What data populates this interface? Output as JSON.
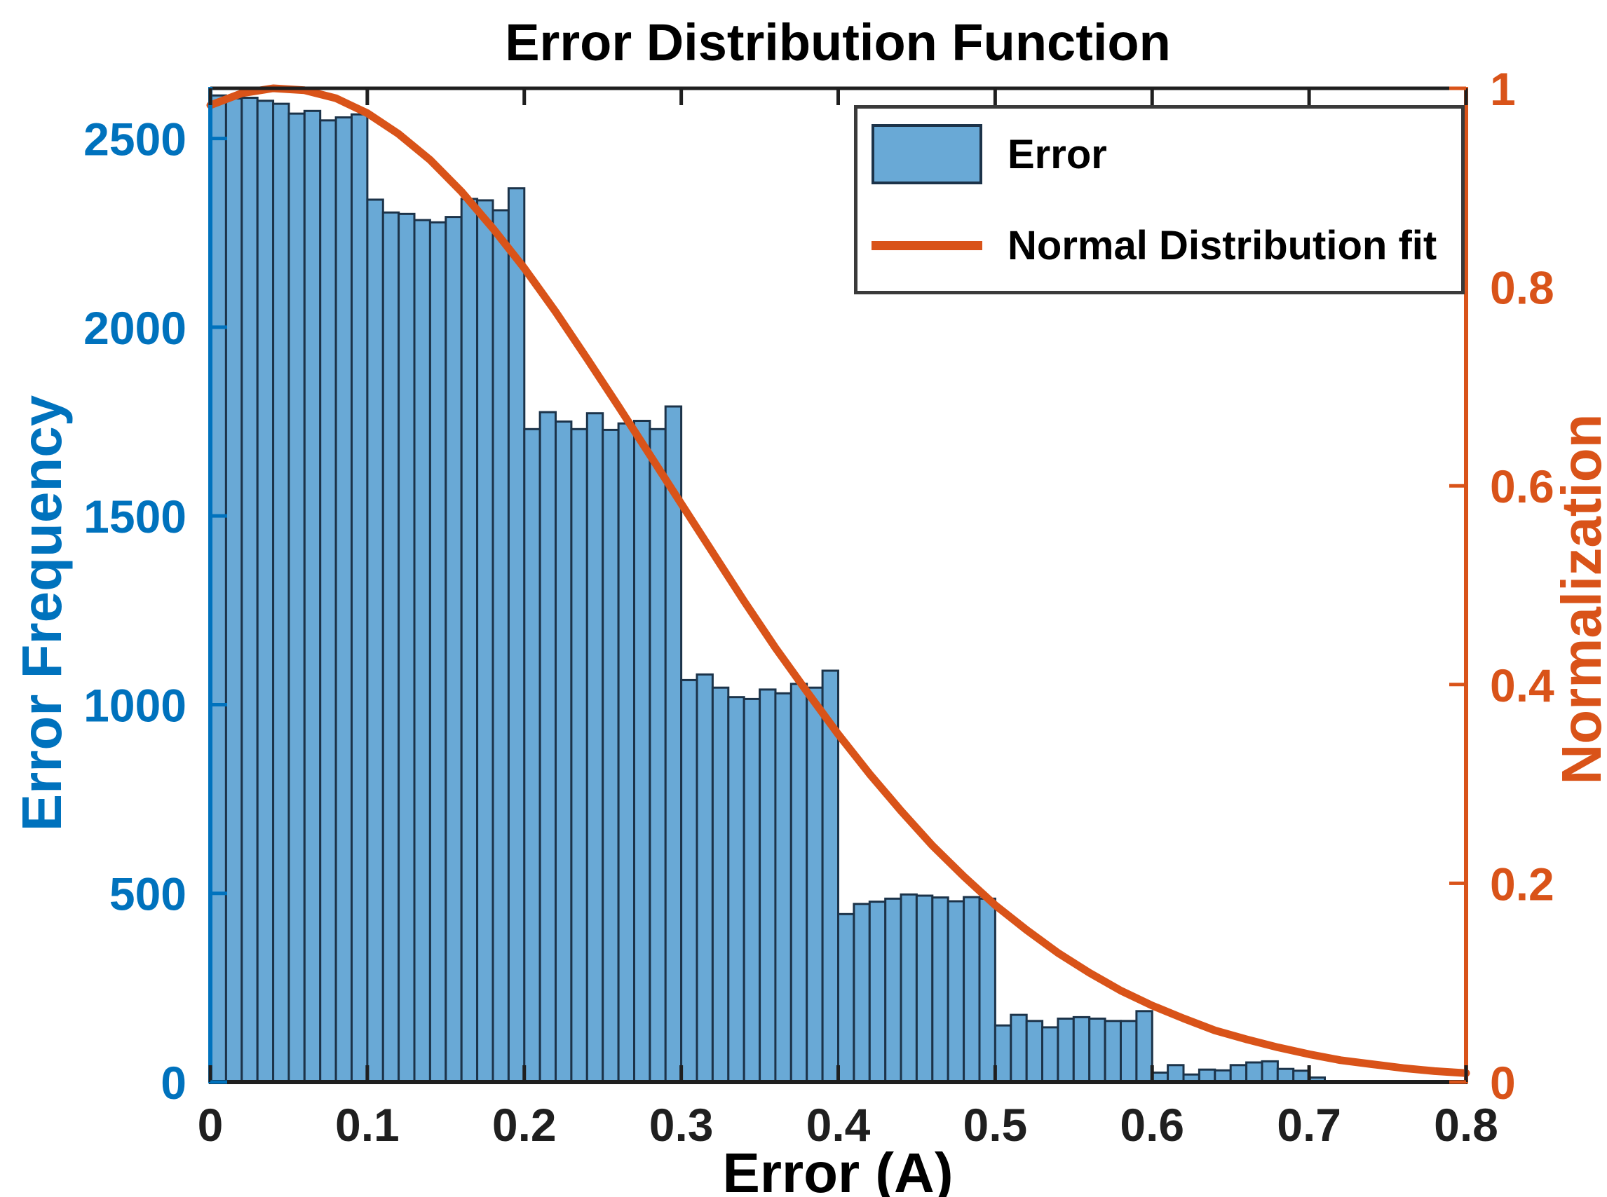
{
  "chart_data": {
    "type": "bar",
    "title": "Error Distribution Function",
    "xlabel": "Error (A)",
    "ylabel_left": "Error Frequency",
    "ylabel_right": "Normalization",
    "xlim": [
      0,
      0.8
    ],
    "ylim_left": [
      0,
      2633
    ],
    "ylim_right": [
      0,
      1
    ],
    "grid": false,
    "legend_position": "top-right",
    "x_ticks": [
      0,
      0.1,
      0.2,
      0.3,
      0.4,
      0.5,
      0.6,
      0.7,
      0.8
    ],
    "x_tick_labels": [
      "0",
      "0.1",
      "0.2",
      "0.3",
      "0.4",
      "0.5",
      "0.6",
      "0.7",
      "0.8"
    ],
    "y_left_ticks": [
      0,
      500,
      1000,
      1500,
      2000,
      2500
    ],
    "y_left_tick_labels": [
      "0",
      "500",
      "1000",
      "1500",
      "2000",
      "2500"
    ],
    "y_right_ticks": [
      0,
      0.2,
      0.4,
      0.6,
      0.8,
      1
    ],
    "y_right_tick_labels": [
      "0",
      "0.2",
      "0.4",
      "0.6",
      "0.8",
      "1"
    ],
    "bars": {
      "series_name": "Error",
      "bin_start": 0,
      "bin_width": 0.01,
      "values": [
        2614,
        2606,
        2608,
        2600,
        2592,
        2566,
        2573,
        2548,
        2556,
        2564,
        2338,
        2304,
        2300,
        2284,
        2278,
        2292,
        2340,
        2336,
        2310,
        2368,
        1730,
        1775,
        1750,
        1730,
        1772,
        1728,
        1745,
        1752,
        1730,
        1790,
        1065,
        1080,
        1045,
        1020,
        1015,
        1040,
        1030,
        1055,
        1045,
        1090,
        445,
        472,
        478,
        486,
        497,
        494,
        489,
        479,
        490,
        486,
        150,
        178,
        162,
        145,
        168,
        172,
        168,
        162,
        162,
        188,
        25,
        45,
        20,
        33,
        31,
        45,
        52,
        55,
        35,
        30,
        12
      ]
    },
    "fit_curve": {
      "series_name": "Normal Distribution fit",
      "x": [
        0,
        0.02,
        0.04,
        0.06,
        0.08,
        0.1,
        0.12,
        0.14,
        0.16,
        0.18,
        0.2,
        0.22,
        0.24,
        0.26,
        0.28,
        0.3,
        0.32,
        0.34,
        0.36,
        0.38,
        0.4,
        0.42,
        0.44,
        0.46,
        0.48,
        0.5,
        0.52,
        0.54,
        0.56,
        0.58,
        0.6,
        0.62,
        0.64,
        0.66,
        0.68,
        0.7,
        0.72,
        0.74,
        0.76,
        0.78,
        0.8
      ],
      "norm": [
        0.983,
        0.995,
        1.0,
        0.998,
        0.99,
        0.975,
        0.954,
        0.928,
        0.896,
        0.859,
        0.819,
        0.775,
        0.728,
        0.68,
        0.631,
        0.582,
        0.533,
        0.484,
        0.437,
        0.393,
        0.35,
        0.31,
        0.273,
        0.238,
        0.207,
        0.178,
        0.153,
        0.13,
        0.11,
        0.092,
        0.077,
        0.064,
        0.052,
        0.043,
        0.035,
        0.028,
        0.022,
        0.018,
        0.014,
        0.011,
        0.009
      ]
    },
    "legend": [
      {
        "label": "Error",
        "type": "bar"
      },
      {
        "label": "Normal Distribution fit",
        "type": "line"
      }
    ],
    "colors": {
      "bar_fill": "#69A9D6",
      "bar_edge": "#1C3349",
      "fit_line": "#D95319",
      "left_axis": "#0072BD",
      "right_axis": "#D95319",
      "spine_dark": "#1F1F1F",
      "x_tick_text": "#1F1F1F",
      "title_text": "#000000",
      "legend_border": "#3A3A3A"
    }
  }
}
